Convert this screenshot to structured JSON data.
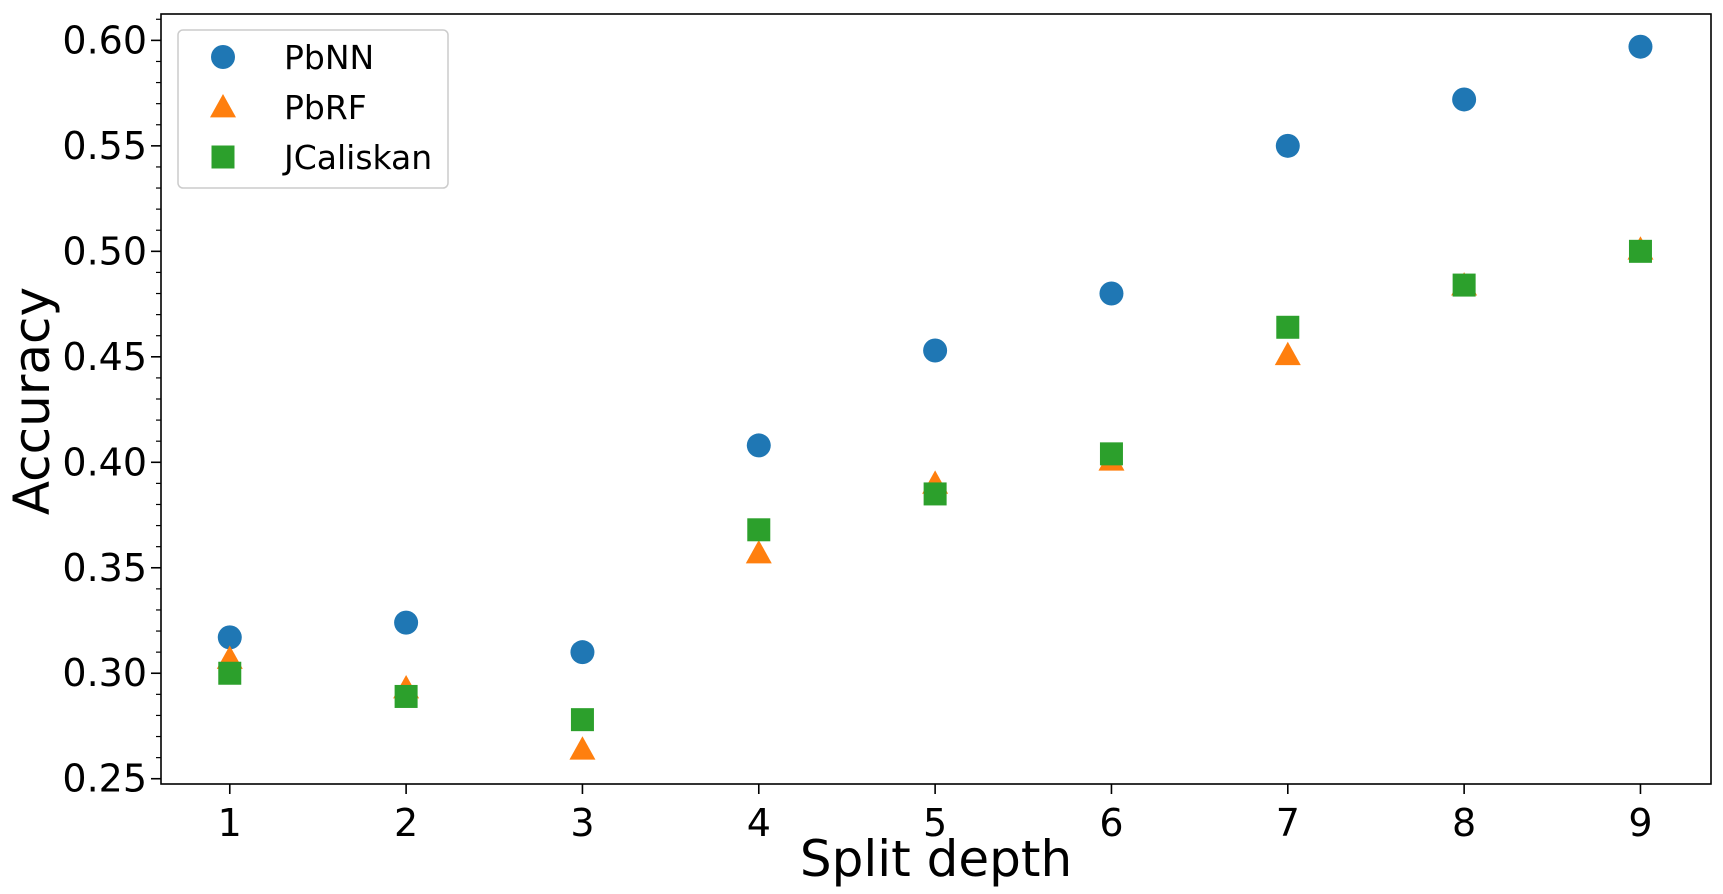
{
  "chart_data": {
    "type": "scatter",
    "title": "",
    "xlabel": "Split depth",
    "ylabel": "Accuracy",
    "xlim": [
      0.61,
      9.4
    ],
    "ylim": [
      0.2475,
      0.6125
    ],
    "x_ticks": [
      1,
      2,
      3,
      4,
      5,
      6,
      7,
      8,
      9
    ],
    "x_tick_labels": [
      "1",
      "2",
      "3",
      "4",
      "5",
      "6",
      "7",
      "8",
      "9"
    ],
    "y_ticks": [
      0.25,
      0.3,
      0.35,
      0.4,
      0.45,
      0.5,
      0.55,
      0.6
    ],
    "y_tick_labels": [
      "0.25",
      "0.30",
      "0.35",
      "0.40",
      "0.45",
      "0.50",
      "0.55",
      "0.60"
    ],
    "grid": false,
    "legend": "top-left",
    "x": [
      1,
      2,
      3,
      4,
      5,
      6,
      7,
      8,
      9
    ],
    "series": [
      {
        "name": "PbNN",
        "marker": "circle",
        "color": "#1f77b4",
        "values": [
          0.317,
          0.324,
          0.31,
          0.408,
          0.453,
          0.48,
          0.55,
          0.572,
          0.597
        ]
      },
      {
        "name": "PbRF",
        "marker": "triangle",
        "color": "#ff7f0e",
        "values": [
          0.307,
          0.293,
          0.264,
          0.357,
          0.39,
          0.401,
          0.451,
          0.484,
          0.501
        ]
      },
      {
        "name": "JCaliskan",
        "marker": "square",
        "color": "#2ca02c",
        "values": [
          0.3,
          0.289,
          0.278,
          0.368,
          0.385,
          0.404,
          0.464,
          0.484,
          0.5
        ]
      }
    ]
  }
}
